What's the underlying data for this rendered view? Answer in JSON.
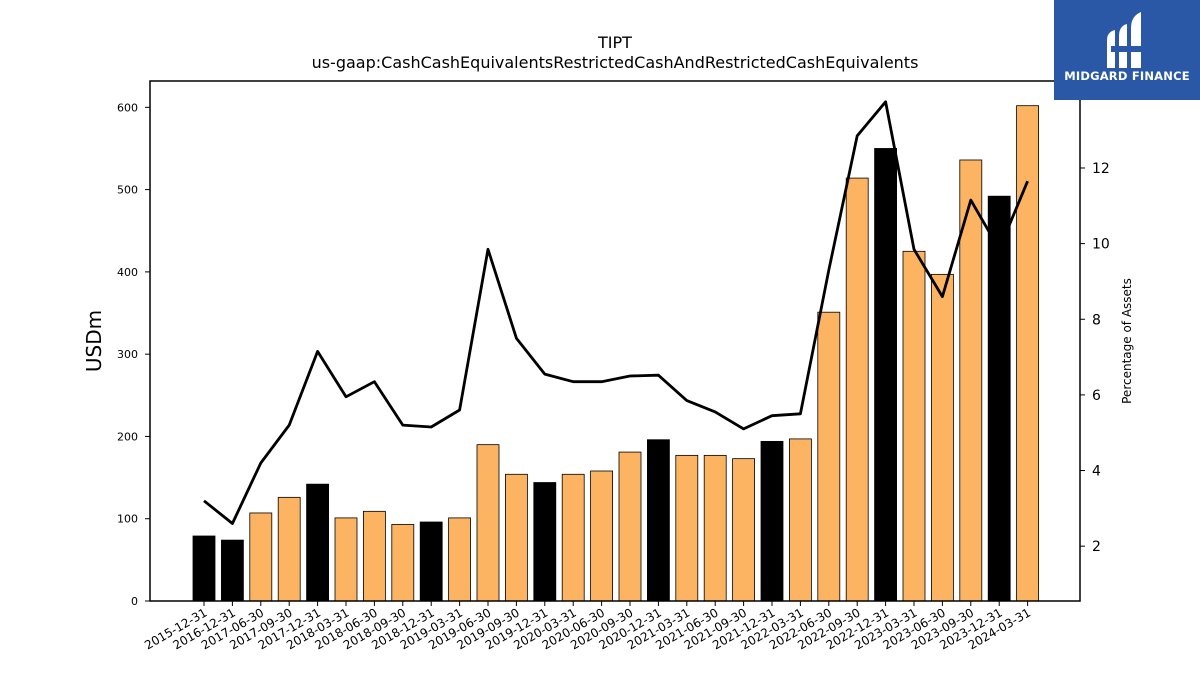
{
  "chart_data": {
    "type": "bar",
    "title": "TIPT",
    "subtitle": "us-gaap:CashCashEquivalentsRestrictedCashAndRestrictedCashEquivalents",
    "ylabel": "USDm",
    "y2label": "Percentage of Assets",
    "ylim": [
      0,
      632
    ],
    "y2lim": [
      0.55,
      14.3
    ],
    "yticks": [
      0,
      100,
      200,
      300,
      400,
      500,
      600
    ],
    "y2ticks": [
      2,
      4,
      6,
      8,
      10,
      12
    ],
    "grid": false,
    "categories": [
      "2015-12-31",
      "2016-12-31",
      "2017-06-30",
      "2017-09-30",
      "2017-12-31",
      "2018-03-31",
      "2018-06-30",
      "2018-09-30",
      "2018-12-31",
      "2019-03-31",
      "2019-06-30",
      "2019-09-30",
      "2019-12-31",
      "2020-03-31",
      "2020-06-30",
      "2020-09-30",
      "2020-12-31",
      "2021-03-31",
      "2021-06-30",
      "2021-09-30",
      "2021-12-31",
      "2022-03-31",
      "2022-06-30",
      "2022-09-30",
      "2022-12-31",
      "2023-03-31",
      "2023-06-30",
      "2023-09-30",
      "2023-12-31",
      "2024-03-31"
    ],
    "series": [
      {
        "type": "bar",
        "axis": "left",
        "values": [
          79,
          74,
          107,
          126,
          142,
          101,
          109,
          93,
          96,
          101,
          190,
          154,
          144,
          154,
          158,
          181,
          196,
          177,
          177,
          173,
          194,
          197,
          351,
          514,
          550,
          425,
          397,
          536,
          492,
          602
        ],
        "colors": [
          "#000000",
          "#000000",
          "#fdb462",
          "#fdb462",
          "#000000",
          "#fdb462",
          "#fdb462",
          "#fdb462",
          "#000000",
          "#fdb462",
          "#fdb462",
          "#fdb462",
          "#000000",
          "#fdb462",
          "#fdb462",
          "#fdb462",
          "#000000",
          "#fdb462",
          "#fdb462",
          "#fdb462",
          "#000000",
          "#fdb462",
          "#fdb462",
          "#fdb462",
          "#000000",
          "#fdb462",
          "#fdb462",
          "#fdb462",
          "#000000",
          "#fdb462"
        ]
      },
      {
        "type": "line",
        "axis": "right",
        "color": "#000000",
        "values": [
          3.2,
          2.6,
          4.2,
          5.2,
          7.15,
          5.95,
          6.35,
          5.2,
          5.15,
          5.6,
          9.85,
          7.5,
          6.55,
          6.35,
          6.35,
          6.5,
          6.52,
          5.85,
          5.55,
          5.1,
          5.45,
          5.5,
          9.3,
          12.85,
          13.75,
          9.85,
          8.6,
          11.15,
          9.85,
          11.65
        ]
      }
    ]
  },
  "logo": {
    "text": "MIDGARD FINANCE",
    "background": "#2b58a6",
    "icon": "midgard-logo-icon"
  }
}
